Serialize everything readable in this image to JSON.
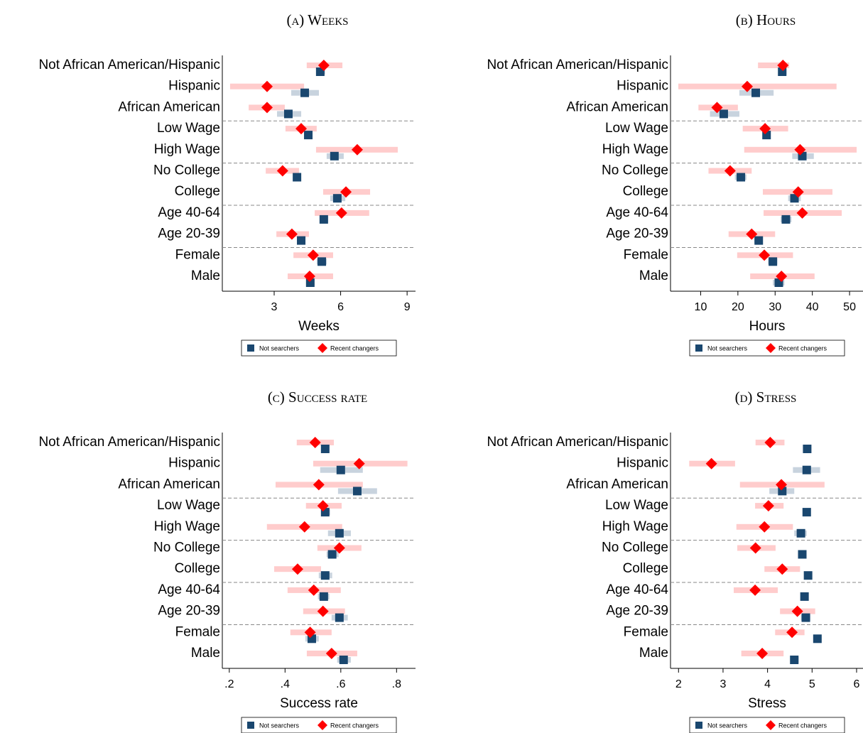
{
  "chart_data": [
    {
      "type": "dot",
      "title": "(a) Weeks",
      "xlabel": "Weeks",
      "categories": [
        "Not African American/Hispanic",
        "Hispanic",
        "African American",
        "Low Wage",
        "High Wage",
        "No College",
        "College",
        "Age 40-64",
        "Age 20-39",
        "Female",
        "Male"
      ],
      "series": [
        {
          "name": "Not searchers",
          "color": "#1a476f",
          "ci_color": "#c8d3de",
          "values": [
            5.08,
            4.38,
            3.64,
            4.54,
            5.72,
            4.03,
            5.85,
            5.24,
            4.22,
            5.15,
            4.63
          ],
          "lower": [
            4.9,
            3.77,
            3.13,
            4.38,
            5.37,
            3.87,
            5.53,
            5.05,
            4.03,
            4.92,
            4.44
          ],
          "upper": [
            5.3,
            5.02,
            4.22,
            4.73,
            6.14,
            4.19,
            6.21,
            5.44,
            4.41,
            5.37,
            4.83
          ]
        },
        {
          "name": "Recent changers",
          "color": "#ff0000",
          "ci_color": "#ffcccc",
          "values": [
            5.24,
            2.68,
            2.68,
            4.22,
            6.75,
            3.38,
            6.24,
            6.04,
            3.8,
            4.76,
            4.6
          ],
          "lower": [
            4.47,
            1.01,
            1.85,
            3.51,
            4.89,
            2.62,
            5.21,
            4.83,
            3.1,
            3.87,
            3.61
          ],
          "upper": [
            6.08,
            4.35,
            3.48,
            4.92,
            8.58,
            4.12,
            7.33,
            7.29,
            4.57,
            5.66,
            5.66
          ]
        }
      ],
      "xlim": [
        0.66,
        9.38
      ],
      "xticks": [
        3,
        6,
        9
      ]
    },
    {
      "type": "dot",
      "title": "(b) Hours",
      "xlabel": "Hours",
      "categories": [
        "Not African American/Hispanic",
        "Hispanic",
        "African American",
        "Low Wage",
        "High Wage",
        "No College",
        "College",
        "Age 40-64",
        "Age 20-39",
        "Female",
        "Male"
      ],
      "series": [
        {
          "name": "Not searchers",
          "color": "#1a476f",
          "ci_color": "#c8d3de",
          "values": [
            31.9,
            24.8,
            16.2,
            27.7,
            37.3,
            20.8,
            35.2,
            32.9,
            25.6,
            29.4,
            31
          ],
          "lower": [
            30.8,
            20.4,
            12.5,
            26.7,
            34.6,
            19.2,
            33.5,
            31.5,
            24.4,
            28.1,
            29.4
          ],
          "upper": [
            33.1,
            29.6,
            20.4,
            28.8,
            40.4,
            22.3,
            36.9,
            34.4,
            26.7,
            30.6,
            32.5
          ]
        },
        {
          "name": "Recent changers",
          "color": "#ff0000",
          "ci_color": "#ffcccc",
          "values": [
            32.1,
            22.5,
            14.4,
            27.3,
            36.7,
            17.9,
            36.2,
            37.3,
            23.7,
            27.1,
            31.7
          ],
          "lower": [
            25.4,
            4,
            9.4,
            21.3,
            21.7,
            12.1,
            26.7,
            26.9,
            17.5,
            19.8,
            23.3
          ],
          "upper": [
            33.8,
            46.5,
            20,
            33.5,
            51.9,
            23.7,
            45.4,
            47.9,
            30,
            34.8,
            40.6
          ]
        }
      ],
      "xlim": [
        1.9,
        53.8
      ],
      "xticks": [
        10,
        20,
        30,
        40,
        50
      ]
    },
    {
      "type": "dot",
      "title": "(c) Success rate",
      "xlabel": "Success rate",
      "categories": [
        "Not African American/Hispanic",
        "Hispanic",
        "African American",
        "Low Wage",
        "High Wage",
        "No College",
        "College",
        "Age 40-64",
        "Age 20-39",
        "Female",
        "Male"
      ],
      "series": [
        {
          "name": "Not searchers",
          "color": "#1a476f",
          "ci_color": "#c8d3de",
          "values": [
            0.544,
            0.6,
            0.659,
            0.544,
            0.595,
            0.569,
            0.544,
            0.539,
            0.595,
            0.496,
            0.61
          ],
          "lower": [
            0.531,
            0.526,
            0.59,
            0.529,
            0.554,
            0.549,
            0.521,
            0.518,
            0.567,
            0.473,
            0.587
          ],
          "upper": [
            0.559,
            0.679,
            0.73,
            0.562,
            0.636,
            0.592,
            0.569,
            0.559,
            0.625,
            0.521,
            0.636
          ]
        },
        {
          "name": "Recent changers",
          "color": "#ff0000",
          "ci_color": "#ffcccc",
          "values": [
            0.508,
            0.666,
            0.521,
            0.536,
            0.47,
            0.595,
            0.445,
            0.503,
            0.536,
            0.49,
            0.567
          ],
          "lower": [
            0.442,
            0.501,
            0.366,
            0.475,
            0.335,
            0.516,
            0.361,
            0.409,
            0.465,
            0.419,
            0.478
          ],
          "upper": [
            0.575,
            0.839,
            0.679,
            0.603,
            0.605,
            0.674,
            0.529,
            0.6,
            0.615,
            0.567,
            0.659
          ]
        }
      ],
      "xlim": [
        0.175,
        0.868
      ],
      "xticks": [
        {
          "value": 0.2,
          "label": ".2"
        },
        {
          "value": 0.4,
          "label": ".4"
        },
        {
          "value": 0.6,
          "label": ".6"
        },
        {
          "value": 0.8,
          "label": ".8"
        }
      ]
    },
    {
      "type": "dot",
      "title": "(d) Stress",
      "xlabel": "Stress",
      "categories": [
        "Not African American/Hispanic",
        "Hispanic",
        "African American",
        "Low Wage",
        "High Wage",
        "No College",
        "College",
        "Age 40-64",
        "Age 20-39",
        "Female",
        "Male"
      ],
      "series": [
        {
          "name": "Not searchers",
          "color": "#1a476f",
          "ci_color": "#c8d3de",
          "values": [
            4.89,
            4.88,
            4.33,
            4.88,
            4.75,
            4.78,
            4.91,
            4.83,
            4.86,
            5.12,
            4.6
          ],
          "lower": [
            4.86,
            4.57,
            4.04,
            4.84,
            4.6,
            4.71,
            4.84,
            4.79,
            4.75,
            5.08,
            4.52
          ],
          "upper": [
            4.94,
            5.18,
            4.6,
            4.91,
            4.88,
            4.84,
            4.97,
            4.89,
            4.96,
            5.16,
            4.7
          ]
        },
        {
          "name": "Recent changers",
          "color": "#ff0000",
          "ci_color": "#ffcccc",
          "values": [
            4.06,
            2.74,
            4.31,
            4.02,
            3.93,
            3.73,
            4.33,
            3.72,
            4.67,
            4.55,
            3.88
          ],
          "lower": [
            3.73,
            2.24,
            3.38,
            3.72,
            3.3,
            3.32,
            3.93,
            3.24,
            4.28,
            4.17,
            3.41
          ],
          "upper": [
            4.38,
            3.27,
            5.28,
            4.36,
            4.57,
            4.18,
            4.73,
            4.23,
            5.07,
            4.83,
            4.36
          ]
        }
      ],
      "xlim": [
        1.82,
        6.16
      ],
      "xticks": [
        2,
        3,
        4,
        5,
        6
      ]
    }
  ]
}
